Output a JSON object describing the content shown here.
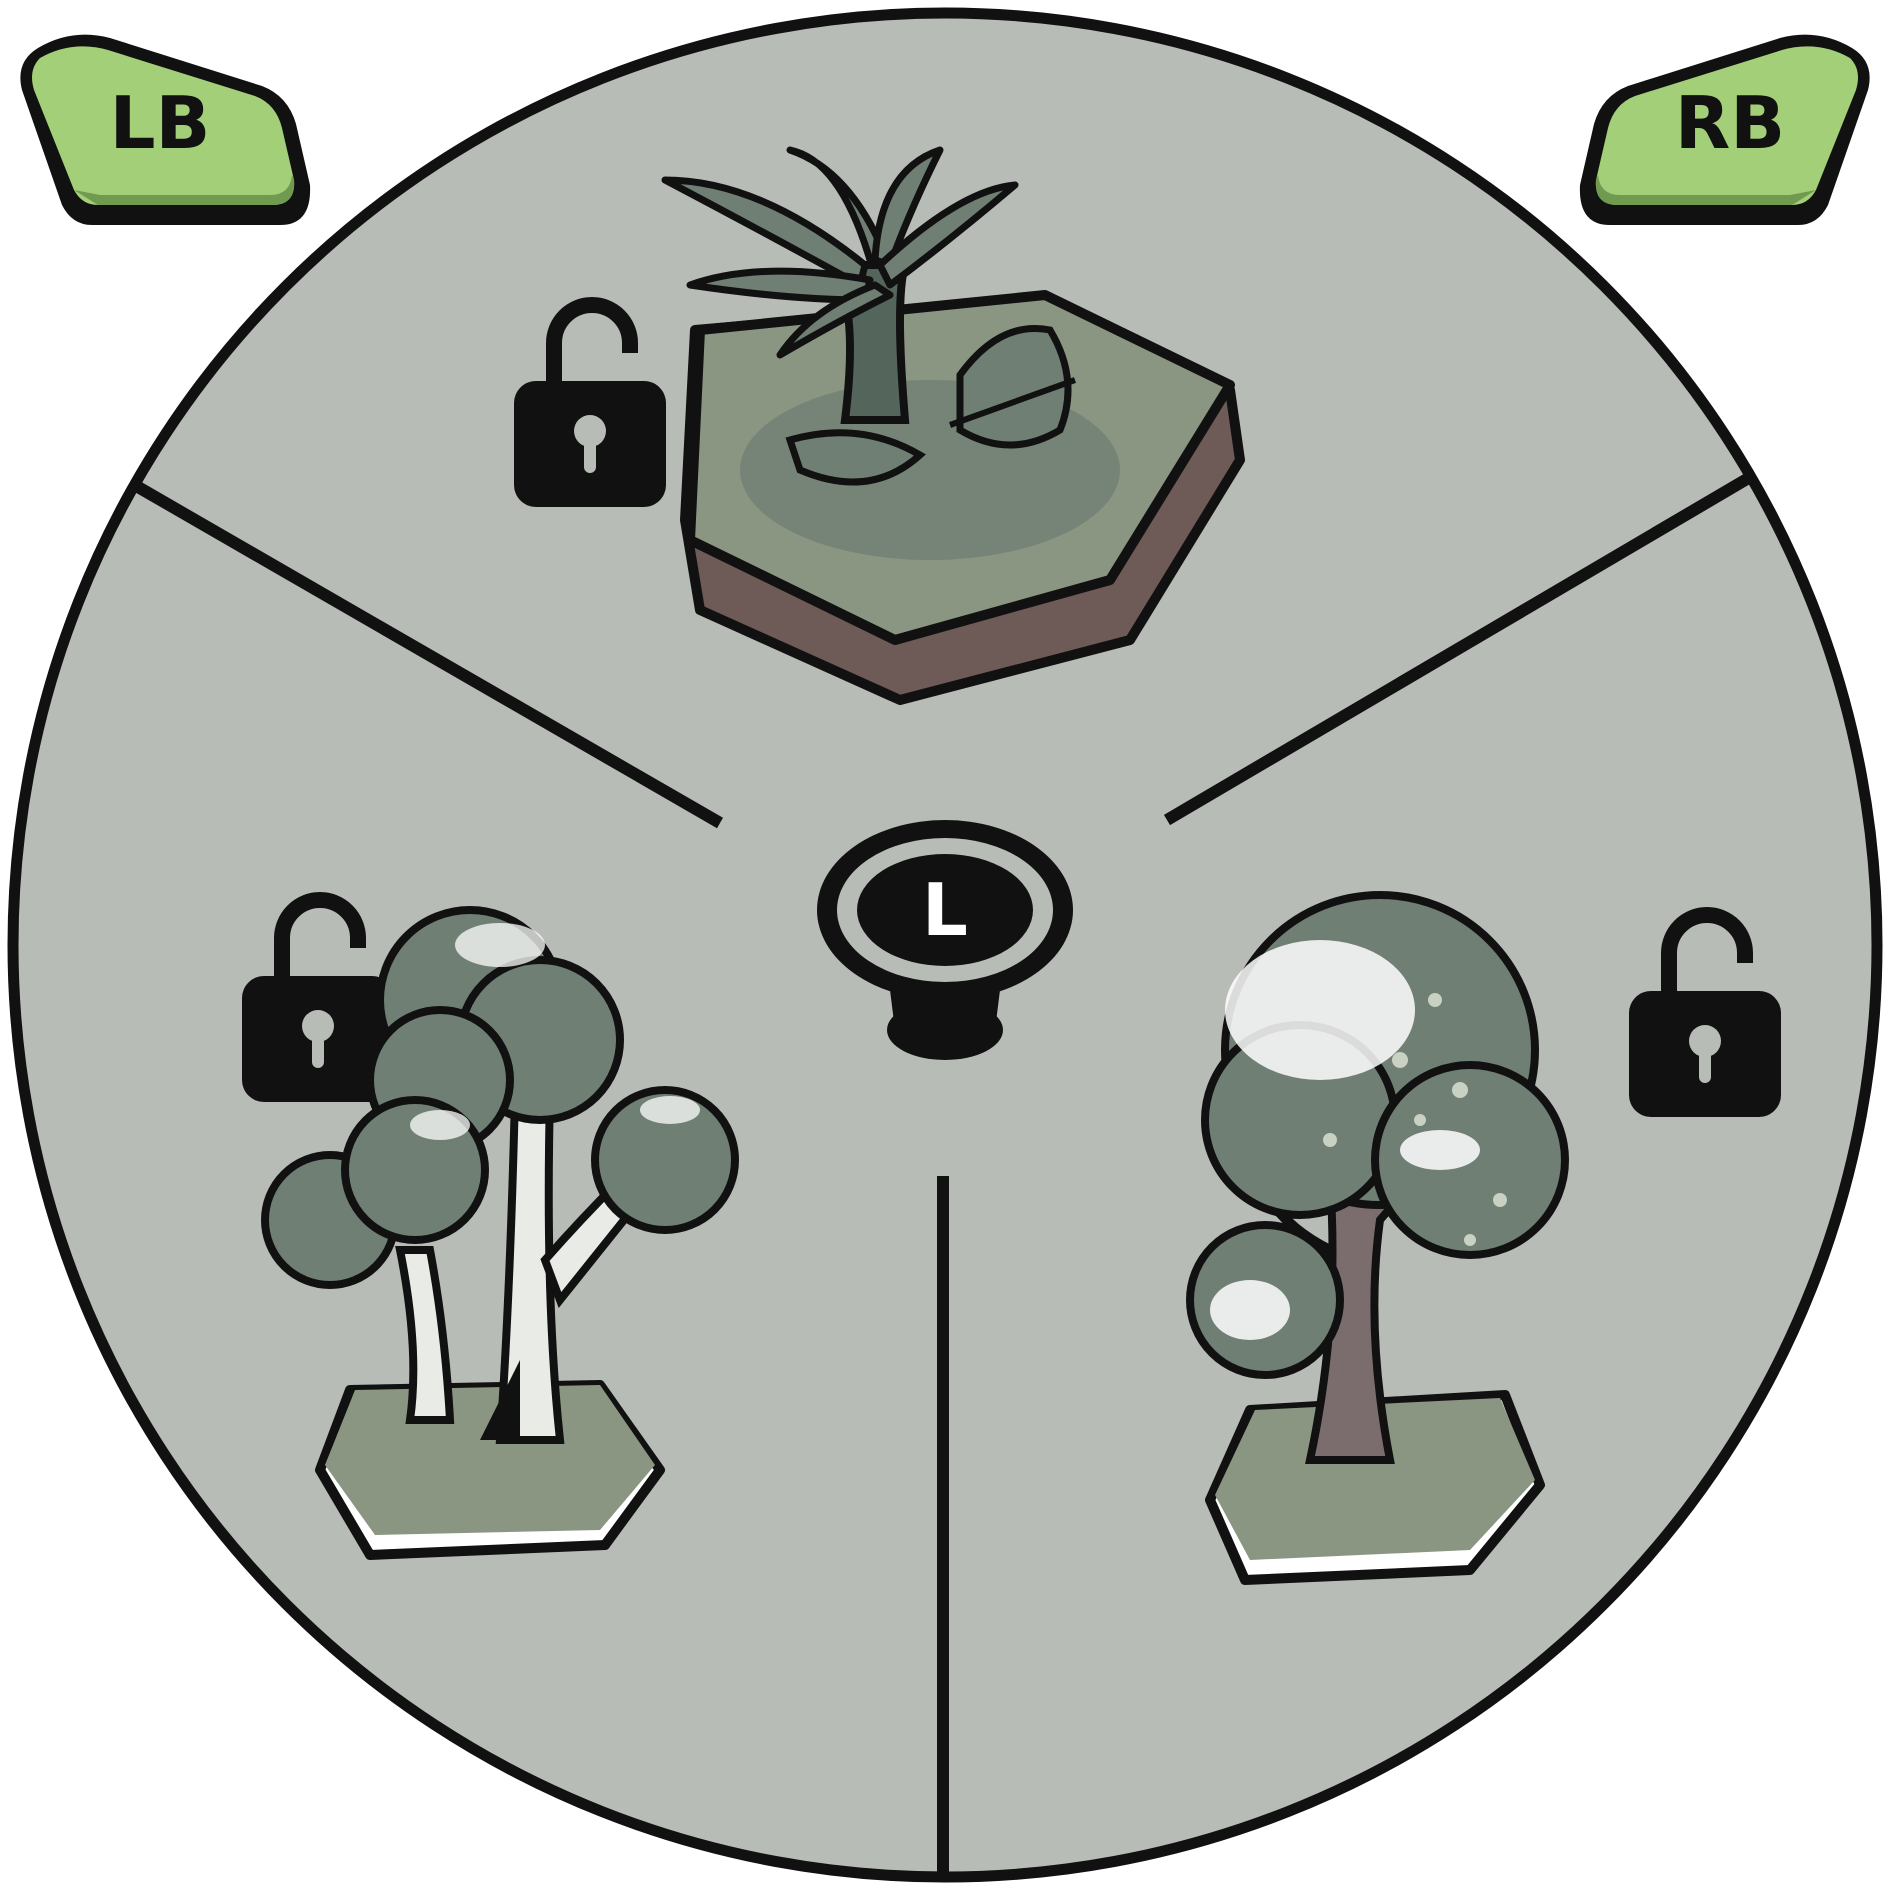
{
  "bumpers": {
    "left": {
      "label": "LB"
    },
    "right": {
      "label": "RB"
    }
  },
  "stick": {
    "label": "L"
  },
  "wheel": {
    "segments": [
      {
        "item": "palm-fern-hex-tile",
        "lock": "unlocked"
      },
      {
        "item": "tree-grove-hex-tile",
        "lock": "unlocked"
      },
      {
        "item": "oak-tree-hex-tile",
        "lock": "unlocked"
      }
    ]
  },
  "colors": {
    "wheel_fill": "#b8bcb6",
    "outline": "#111111",
    "bumper_fill": "#a2cf78",
    "bumper_shadow": "#6f9a4f",
    "foliage": "#6f7f74",
    "foliage_dark": "#54655b",
    "grass": "#8b9682",
    "soil": "#6e5a57",
    "trunk_light": "#e8ebe6",
    "trunk_brown": "#7b6d6d"
  }
}
